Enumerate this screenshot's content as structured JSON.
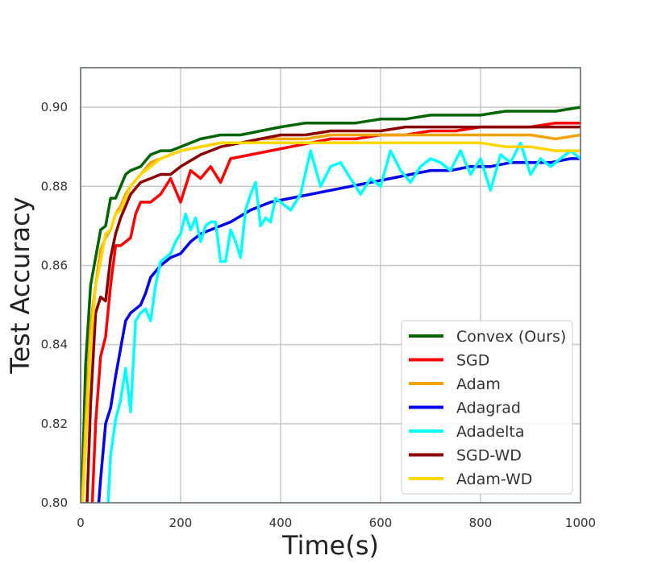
{
  "chart_data": {
    "type": "line",
    "xlabel": "Time(s)",
    "ylabel": "Test Accuracy",
    "xlim": [
      0,
      1000
    ],
    "ylim": [
      0.8,
      0.91
    ],
    "xticks": [
      0,
      200,
      400,
      600,
      800,
      1000
    ],
    "yticks": [
      0.8,
      0.82,
      0.84,
      0.86,
      0.88,
      0.9
    ],
    "xtick_labels": [
      "0",
      "200",
      "400",
      "600",
      "800",
      "1000"
    ],
    "ytick_labels": [
      "0.80",
      "0.82",
      "0.84",
      "0.86",
      "0.88",
      "0.90"
    ],
    "grid": true,
    "legend_position": "lower-right",
    "series": [
      {
        "name": "Convex (Ours)",
        "color": "#006400",
        "x": [
          0,
          10,
          20,
          30,
          40,
          50,
          60,
          70,
          80,
          90,
          100,
          120,
          140,
          160,
          180,
          200,
          240,
          280,
          320,
          360,
          400,
          450,
          500,
          550,
          600,
          650,
          700,
          750,
          800,
          850,
          900,
          950,
          1000
        ],
        "y": [
          0.79,
          0.835,
          0.855,
          0.862,
          0.869,
          0.87,
          0.877,
          0.877,
          0.88,
          0.883,
          0.884,
          0.885,
          0.888,
          0.889,
          0.889,
          0.89,
          0.892,
          0.893,
          0.893,
          0.894,
          0.895,
          0.896,
          0.896,
          0.896,
          0.897,
          0.897,
          0.898,
          0.898,
          0.898,
          0.899,
          0.899,
          0.899,
          0.9
        ]
      },
      {
        "name": "SGD",
        "color": "#ff0000",
        "x": [
          20,
          30,
          40,
          50,
          60,
          70,
          80,
          90,
          100,
          110,
          120,
          140,
          160,
          180,
          200,
          220,
          240,
          260,
          280,
          300,
          340,
          380,
          420,
          460,
          500,
          550,
          600,
          650,
          700,
          750,
          800,
          850,
          900,
          950,
          1000
        ],
        "y": [
          0.79,
          0.82,
          0.837,
          0.842,
          0.855,
          0.865,
          0.865,
          0.866,
          0.867,
          0.873,
          0.876,
          0.876,
          0.878,
          0.882,
          0.876,
          0.884,
          0.882,
          0.885,
          0.881,
          0.887,
          0.888,
          0.889,
          0.89,
          0.891,
          0.892,
          0.892,
          0.893,
          0.893,
          0.894,
          0.894,
          0.895,
          0.895,
          0.895,
          0.896,
          0.896
        ]
      },
      {
        "name": "Adam",
        "color": "#f0a30a",
        "x": [
          0,
          10,
          20,
          30,
          40,
          50,
          60,
          70,
          80,
          90,
          100,
          120,
          140,
          160,
          180,
          200,
          240,
          280,
          320,
          360,
          400,
          450,
          500,
          550,
          600,
          650,
          700,
          750,
          800,
          850,
          900,
          950,
          1000
        ],
        "y": [
          0.79,
          0.82,
          0.845,
          0.855,
          0.864,
          0.867,
          0.869,
          0.873,
          0.875,
          0.878,
          0.88,
          0.883,
          0.886,
          0.887,
          0.888,
          0.889,
          0.89,
          0.891,
          0.891,
          0.892,
          0.892,
          0.892,
          0.893,
          0.893,
          0.893,
          0.893,
          0.893,
          0.893,
          0.893,
          0.893,
          0.893,
          0.892,
          0.893
        ]
      },
      {
        "name": "Adagrad",
        "color": "#0000ee",
        "x": [
          30,
          40,
          50,
          60,
          70,
          80,
          90,
          100,
          110,
          120,
          130,
          140,
          160,
          180,
          200,
          220,
          240,
          260,
          280,
          300,
          340,
          380,
          420,
          460,
          500,
          540,
          580,
          620,
          660,
          700,
          740,
          780,
          820,
          860,
          900,
          940,
          980,
          1000
        ],
        "y": [
          0.79,
          0.806,
          0.82,
          0.824,
          0.832,
          0.839,
          0.846,
          0.848,
          0.849,
          0.85,
          0.853,
          0.857,
          0.86,
          0.862,
          0.863,
          0.866,
          0.868,
          0.869,
          0.87,
          0.871,
          0.874,
          0.876,
          0.877,
          0.878,
          0.879,
          0.88,
          0.881,
          0.882,
          0.883,
          0.884,
          0.884,
          0.885,
          0.885,
          0.886,
          0.886,
          0.886,
          0.887,
          0.887
        ]
      },
      {
        "name": "Adadelta",
        "color": "#00ffff",
        "x": [
          55,
          60,
          70,
          80,
          90,
          100,
          110,
          120,
          130,
          140,
          150,
          160,
          170,
          180,
          190,
          200,
          210,
          220,
          230,
          240,
          250,
          260,
          270,
          280,
          290,
          300,
          310,
          320,
          330,
          340,
          350,
          360,
          370,
          380,
          390,
          400,
          420,
          440,
          460,
          480,
          500,
          520,
          540,
          560,
          580,
          600,
          620,
          640,
          660,
          680,
          700,
          720,
          740,
          760,
          780,
          800,
          820,
          840,
          860,
          880,
          900,
          920,
          940,
          960,
          980,
          1000
        ],
        "y": [
          0.8,
          0.812,
          0.821,
          0.826,
          0.834,
          0.823,
          0.846,
          0.848,
          0.849,
          0.846,
          0.855,
          0.861,
          0.862,
          0.863,
          0.866,
          0.868,
          0.873,
          0.869,
          0.872,
          0.866,
          0.87,
          0.871,
          0.871,
          0.861,
          0.861,
          0.869,
          0.866,
          0.862,
          0.874,
          0.878,
          0.881,
          0.87,
          0.872,
          0.871,
          0.877,
          0.876,
          0.874,
          0.878,
          0.889,
          0.88,
          0.885,
          0.886,
          0.882,
          0.878,
          0.882,
          0.88,
          0.889,
          0.884,
          0.881,
          0.885,
          0.887,
          0.886,
          0.884,
          0.889,
          0.883,
          0.887,
          0.879,
          0.888,
          0.886,
          0.891,
          0.883,
          0.887,
          0.885,
          0.887,
          0.889,
          0.887
        ]
      },
      {
        "name": "SGD-WD",
        "color": "#8b0000",
        "x": [
          10,
          20,
          30,
          40,
          50,
          60,
          70,
          80,
          90,
          100,
          120,
          140,
          160,
          180,
          200,
          240,
          280,
          320,
          360,
          400,
          450,
          500,
          550,
          600,
          650,
          700,
          750,
          800,
          850,
          900,
          950,
          1000
        ],
        "y": [
          0.79,
          0.825,
          0.848,
          0.852,
          0.851,
          0.862,
          0.868,
          0.872,
          0.875,
          0.878,
          0.881,
          0.882,
          0.883,
          0.883,
          0.885,
          0.888,
          0.89,
          0.891,
          0.892,
          0.893,
          0.893,
          0.894,
          0.894,
          0.894,
          0.895,
          0.895,
          0.895,
          0.895,
          0.895,
          0.895,
          0.895,
          0.895
        ]
      },
      {
        "name": "Adam-WD",
        "color": "#ffd700",
        "x": [
          0,
          10,
          20,
          30,
          40,
          50,
          60,
          70,
          80,
          90,
          100,
          120,
          140,
          160,
          180,
          200,
          240,
          280,
          320,
          360,
          400,
          450,
          500,
          550,
          600,
          650,
          700,
          750,
          800,
          850,
          900,
          950,
          1000
        ],
        "y": [
          0.79,
          0.815,
          0.84,
          0.855,
          0.861,
          0.868,
          0.869,
          0.873,
          0.874,
          0.877,
          0.88,
          0.883,
          0.885,
          0.887,
          0.888,
          0.889,
          0.89,
          0.891,
          0.891,
          0.891,
          0.891,
          0.891,
          0.891,
          0.891,
          0.891,
          0.891,
          0.891,
          0.891,
          0.891,
          0.89,
          0.89,
          0.889,
          0.889
        ]
      }
    ]
  }
}
